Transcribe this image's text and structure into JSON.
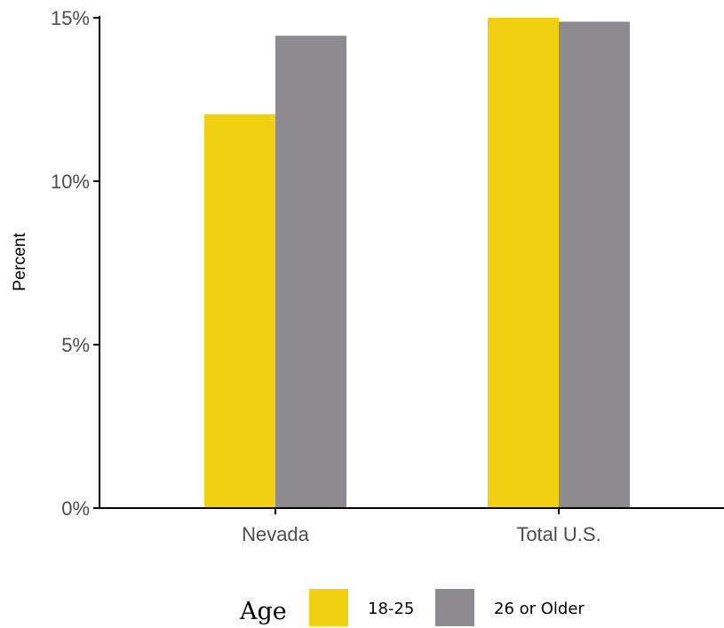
{
  "chart_data": {
    "type": "bar",
    "categories": [
      "Nevada",
      "Total U.S."
    ],
    "series": [
      {
        "name": "18-25",
        "values": [
          12.05,
          15.0
        ],
        "color": "#f0d010"
      },
      {
        "name": "26 or Older",
        "values": [
          14.45,
          14.88
        ],
        "color": "#8e8b90"
      }
    ],
    "ylabel": "Percent",
    "ylim": [
      0,
      15
    ],
    "y_ticks": [
      0,
      5,
      10,
      15
    ],
    "y_tick_labels": [
      "0%",
      "5%",
      "10%",
      "15%"
    ],
    "grid": false,
    "legend": {
      "title": "Age",
      "position": "bottom"
    }
  }
}
